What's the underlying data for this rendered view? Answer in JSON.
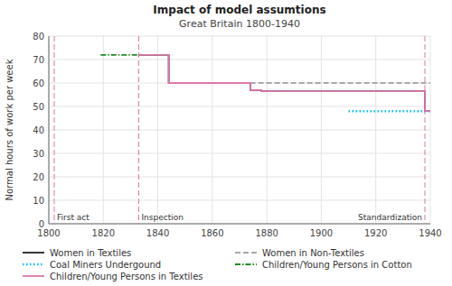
{
  "chart_data": {
    "type": "line",
    "title": "Impact of model assumtions",
    "subtitle": "Great Britain 1800-1940",
    "y_label": "Normal hours of work per week",
    "xlim": [
      1800,
      1940
    ],
    "ylim": [
      0,
      80
    ],
    "xticks": [
      1800,
      1820,
      1840,
      1860,
      1880,
      1900,
      1920,
      1940
    ],
    "yticks": [
      0,
      10,
      20,
      30,
      40,
      50,
      60,
      70,
      80
    ],
    "grid": true,
    "legend": "bottom",
    "annotations": [
      {
        "x": 1802,
        "label": "First act",
        "color": "#dd77aa",
        "line_style": "dashed"
      },
      {
        "x": 1833,
        "label": "Inspection",
        "color": "#dd77aa",
        "line_style": "dashed"
      },
      {
        "x": 1938,
        "label": "Standardization",
        "color": "#dd77aa",
        "line_style": "dashed"
      }
    ],
    "series": [
      {
        "name": "Women in Textiles",
        "color": "#222222",
        "line_style": "solid",
        "x": [
          1833,
          1844,
          1844,
          1847,
          1847,
          1874,
          1874,
          1878,
          1878,
          1938,
          1938,
          1940
        ],
        "values": [
          72,
          72,
          60,
          60,
          60,
          60,
          57,
          57,
          56.5,
          56.5,
          48,
          48
        ]
      },
      {
        "name": "Women in Non-Textiles",
        "color": "#aaaaaa",
        "line_style": "dashed",
        "x": [
          1844,
          1874,
          1874,
          1940
        ],
        "values": [
          60,
          60,
          60,
          60
        ]
      },
      {
        "name": "Coal Miners Undergound",
        "color": "#00bfff",
        "line_style": "dotted",
        "x": [
          1910,
          1938,
          1938,
          1940
        ],
        "values": [
          48,
          48,
          48,
          48
        ]
      },
      {
        "name": "Children/Young Persons in Cotton",
        "color": "#228b22",
        "line_style": "dashdot",
        "x": [
          1819,
          1833,
          1833,
          1844
        ],
        "values": [
          72,
          72,
          72,
          72
        ]
      },
      {
        "name": "Children/Young Persons in Textiles",
        "color": "#dd77aa",
        "line_style": "solid",
        "x": [
          1833,
          1844,
          1844,
          1847,
          1847,
          1874,
          1874,
          1878,
          1878,
          1938,
          1938,
          1940
        ],
        "values": [
          72,
          72,
          60,
          60,
          60,
          60,
          57,
          57,
          56.5,
          56.5,
          48,
          48
        ]
      }
    ]
  }
}
